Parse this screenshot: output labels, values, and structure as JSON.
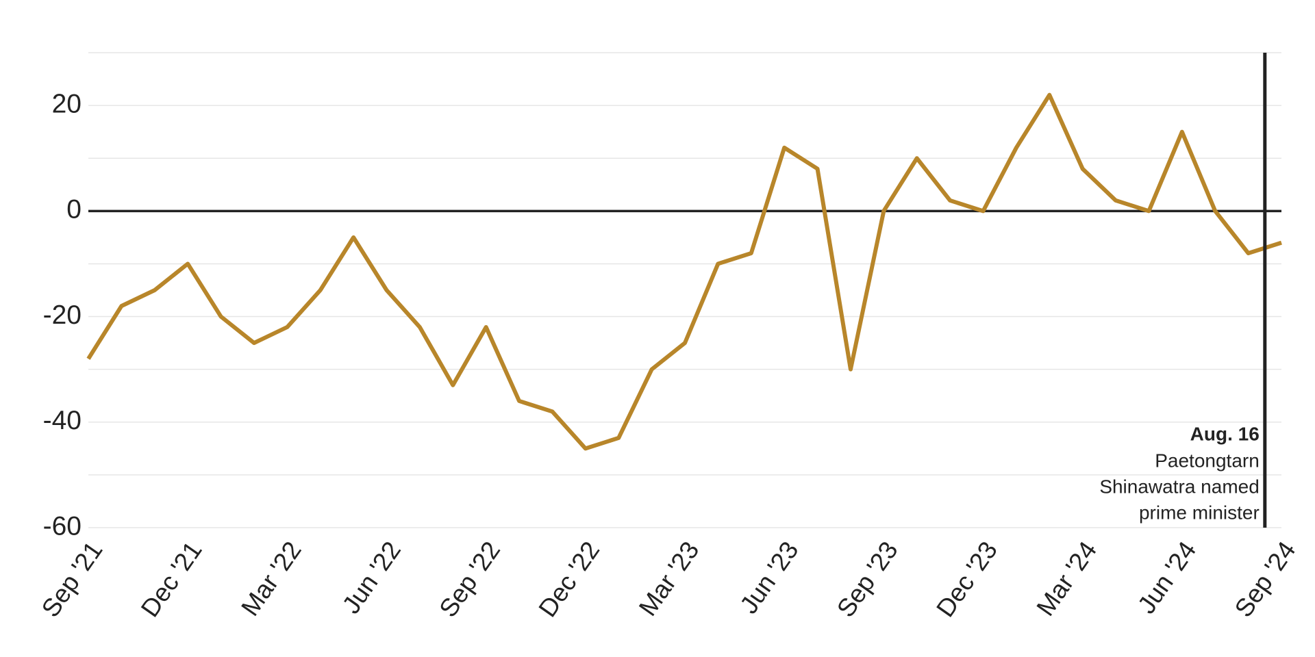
{
  "chart_data": {
    "type": "line",
    "x": [
      "2021-09",
      "2021-10",
      "2021-11",
      "2021-12",
      "2022-01",
      "2022-02",
      "2022-03",
      "2022-04",
      "2022-05",
      "2022-06",
      "2022-07",
      "2022-08",
      "2022-09",
      "2022-10",
      "2022-11",
      "2022-12",
      "2023-01",
      "2023-02",
      "2023-03",
      "2023-04",
      "2023-05",
      "2023-06",
      "2023-07",
      "2023-08",
      "2023-09",
      "2023-10",
      "2023-11",
      "2023-12",
      "2024-01",
      "2024-02",
      "2024-03",
      "2024-04",
      "2024-05",
      "2024-06",
      "2024-07",
      "2024-08",
      "2024-09"
    ],
    "series": [
      {
        "color": "#b8862a",
        "values": [
          -28,
          -18,
          -15,
          -10,
          -20,
          -25,
          -22,
          -15,
          -5,
          -15,
          -22,
          -33,
          -22,
          -36,
          -38,
          -45,
          -43,
          -30,
          -25,
          -10,
          -8,
          12,
          8,
          -30,
          0,
          10,
          2,
          0,
          12,
          22,
          8,
          2,
          0,
          15,
          0,
          -8,
          -6
        ]
      }
    ],
    "xticks": [
      {
        "value": "2021-09",
        "label": "Sep '21"
      },
      {
        "value": "2021-12",
        "label": "Dec '21"
      },
      {
        "value": "2022-03",
        "label": "Mar '22"
      },
      {
        "value": "2022-06",
        "label": "Jun '22"
      },
      {
        "value": "2022-09",
        "label": "Sep '22"
      },
      {
        "value": "2022-12",
        "label": "Dec '22"
      },
      {
        "value": "2023-03",
        "label": "Mar '23"
      },
      {
        "value": "2023-06",
        "label": "Jun '23"
      },
      {
        "value": "2023-09",
        "label": "Sep '23"
      },
      {
        "value": "2023-12",
        "label": "Dec '23"
      },
      {
        "value": "2024-03",
        "label": "Mar '24"
      },
      {
        "value": "2024-06",
        "label": "Jun '24"
      },
      {
        "value": "2024-09",
        "label": "Sep '24"
      }
    ],
    "ylim": [
      -60,
      30
    ],
    "yticks": [
      -60,
      -40,
      -20,
      0,
      20
    ],
    "yminor": [
      -50,
      -30,
      -10,
      10,
      30
    ],
    "grid": true,
    "annotation": {
      "x": "2024-08",
      "title": "Aug. 16",
      "lines": [
        "Paetongtarn",
        "Shinawatra named",
        "prime minister"
      ]
    }
  }
}
